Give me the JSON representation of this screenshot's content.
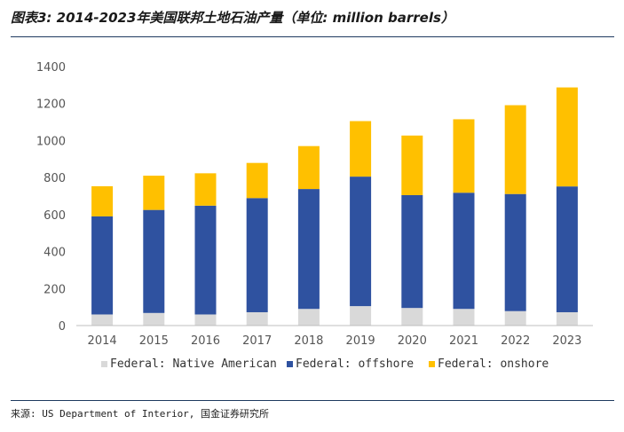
{
  "page": {
    "title": "图表3: 2014-2023年美国联邦土地石油产量（单位: million barrels）",
    "source": "来源: US Department of Interior, 国金证券研究所"
  },
  "chart_data": {
    "type": "bar",
    "stacked": true,
    "title": "2014-2023年美国联邦土地石油产量（单位: million barrels）",
    "xlabel": "",
    "ylabel": "",
    "ylim": [
      0,
      1400
    ],
    "yticks": [
      0,
      200,
      400,
      600,
      800,
      1000,
      1200,
      1400
    ],
    "grid": false,
    "legend_position": "bottom",
    "categories": [
      "2014",
      "2015",
      "2016",
      "2017",
      "2018",
      "2019",
      "2020",
      "2021",
      "2022",
      "2023"
    ],
    "series": [
      {
        "name": "Federal: Native American",
        "color": "#d9d9d9",
        "values": [
          60,
          68,
          60,
          72,
          90,
          105,
          95,
          90,
          78,
          72
        ]
      },
      {
        "name": "Federal: offshore",
        "color": "#2f52a0",
        "values": [
          530,
          557,
          588,
          617,
          648,
          700,
          610,
          628,
          633,
          680
        ]
      },
      {
        "name": "Federal: onshore",
        "color": "#ffc000",
        "values": [
          163,
          185,
          175,
          190,
          232,
          300,
          322,
          397,
          480,
          535
        ]
      }
    ]
  }
}
